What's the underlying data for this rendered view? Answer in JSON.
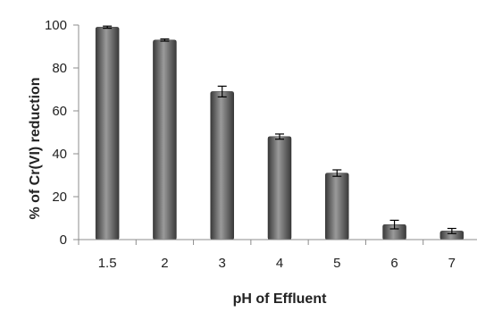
{
  "chart_data": {
    "type": "bar",
    "title": "",
    "xlabel": "pH of Effluent",
    "ylabel": "% of Cr(VI) reduction",
    "categories": [
      "1.5",
      "2",
      "3",
      "4",
      "5",
      "6",
      "7"
    ],
    "values": [
      99,
      93,
      69,
      48,
      31,
      7,
      4
    ],
    "errors": [
      0.5,
      0.5,
      2.5,
      1.2,
      1.5,
      2.0,
      1.2
    ],
    "ylim": [
      0,
      100
    ],
    "yticks": [
      0,
      20,
      40,
      60,
      80,
      100
    ],
    "grid": false,
    "legend": "none",
    "colors": {
      "bar": "#595959",
      "bar_highlight": "#9a9a9a",
      "bar_shadow": "#333333",
      "axis": "#8c8c8c",
      "text": "#222222"
    }
  }
}
